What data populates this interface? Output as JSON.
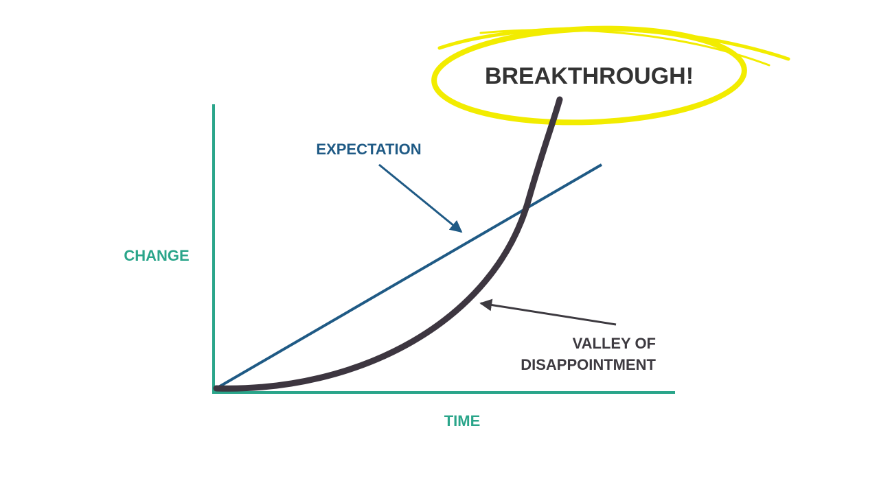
{
  "breakthrough": "BREAKTHROUGH!",
  "expectation": "EXPECTATION",
  "y_axis_label": "CHANGE",
  "x_axis_label": "TIME",
  "valley": {
    "lines": [
      "VALLEY OF",
      "DISAPPOINTMENT"
    ]
  }
}
